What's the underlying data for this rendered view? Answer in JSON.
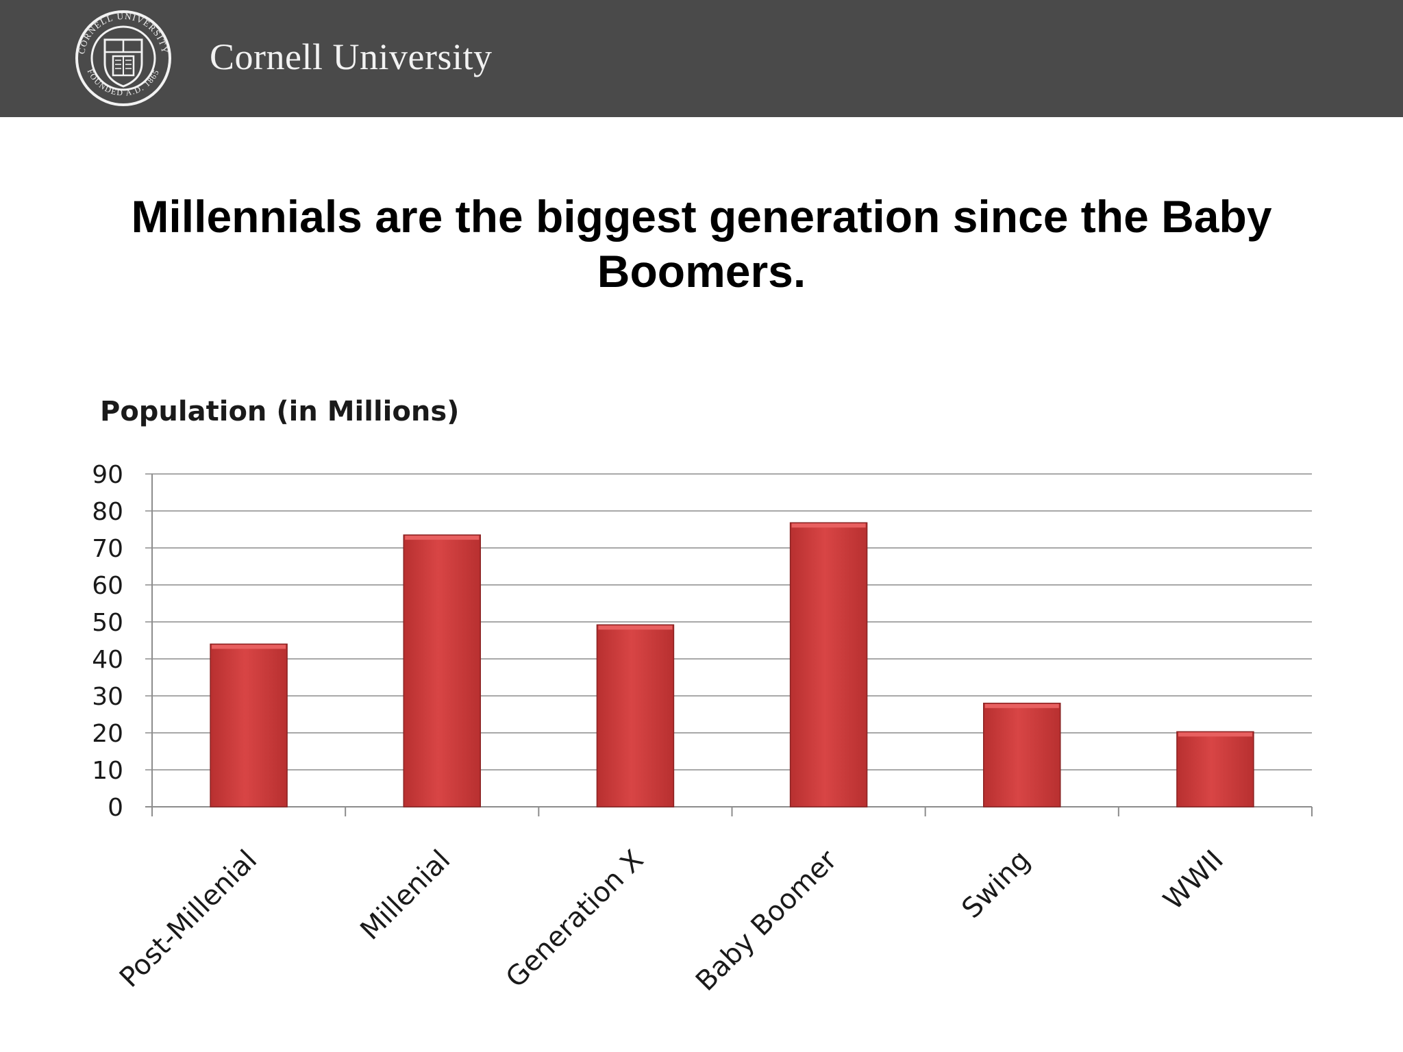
{
  "header": {
    "brand_name": "Cornell University",
    "seal_top_text": "CORNELL UNIVERSITY",
    "seal_bottom_text": "FOUNDED A.D. 1865",
    "background_color": "#4a4a4a"
  },
  "slide": {
    "title_line1": "Millennials are the biggest generation since the Baby",
    "title_line2": "Boomers."
  },
  "chart_data": {
    "type": "bar",
    "title": "Population (in Millions)",
    "categories": [
      "Post-Millenial",
      "Millenial",
      "Generation X",
      "Baby Boomer",
      "Swing",
      "WWII"
    ],
    "values": [
      44,
      73.5,
      49.2,
      76.8,
      28,
      20.3
    ],
    "ylim": [
      0,
      90
    ],
    "yticks": [
      "0",
      "10",
      "20",
      "30",
      "40",
      "50",
      "60",
      "70",
      "80",
      "90"
    ],
    "grid": true,
    "legend": false,
    "bar_color": "#d84545",
    "bar_color_dark": "#b83030"
  }
}
